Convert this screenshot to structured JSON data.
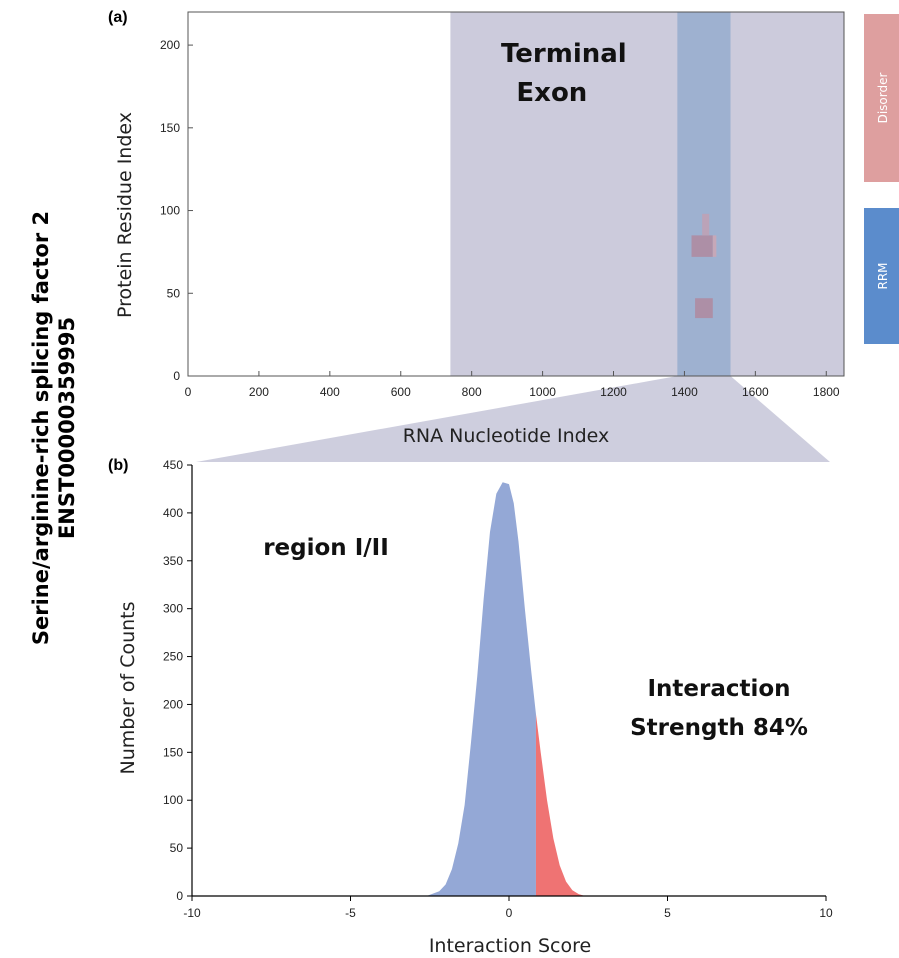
{
  "figure": {
    "protein_title": "Serine/arginine-rich splicing factor 2",
    "transcript_id": "ENST00000359995"
  },
  "chart_data": [
    {
      "panel": "(a)",
      "type": "heatmap",
      "xlabel": "RNA Nucleotide Index",
      "ylabel": "Protein Residue Index",
      "xlim": [
        0,
        1850
      ],
      "ylim": [
        0,
        220
      ],
      "xticks": [
        0,
        200,
        400,
        600,
        800,
        1000,
        1200,
        1400,
        1600,
        1800
      ],
      "yticks": [
        0,
        50,
        100,
        150,
        200
      ],
      "regions": [
        {
          "label_lines": [
            "Terminal",
            "Exon"
          ],
          "x_start": 740,
          "x_end": 1850,
          "color": "#cccbdc"
        },
        {
          "label_lines": [],
          "x_start": 1380,
          "x_end": 1530,
          "color": "#9eb1d0"
        }
      ],
      "cells": [
        {
          "x_start": 1430,
          "x_end": 1480,
          "y_start": 35,
          "y_end": 47,
          "color": "#ad8fa6"
        },
        {
          "x_start": 1420,
          "x_end": 1480,
          "y_start": 72,
          "y_end": 85,
          "color": "#ad8fa6"
        },
        {
          "x_start": 1480,
          "x_end": 1490,
          "y_start": 72,
          "y_end": 85,
          "color": "#c6a8b8"
        },
        {
          "x_start": 1450,
          "x_end": 1470,
          "y_start": 85,
          "y_end": 98,
          "color": "#bba3b8"
        }
      ],
      "domains": [
        {
          "name": "Disorder",
          "color": "#de9f9f"
        },
        {
          "name": "RRM",
          "color": "#5b8ccc"
        }
      ]
    },
    {
      "panel": "(b)",
      "type": "area",
      "xlabel": "Interaction Score",
      "ylabel": "Number of Counts",
      "xlim": [
        -10,
        10
      ],
      "ylim": [
        0,
        450
      ],
      "xticks": [
        -10,
        -5,
        0,
        5,
        10
      ],
      "yticks": [
        0,
        50,
        100,
        150,
        200,
        250,
        300,
        350,
        400,
        450
      ],
      "threshold": 0.85,
      "series": [
        {
          "color_below": "#94a8d6",
          "color_above": "#ef7373",
          "x": [
            -2.6,
            -2.2,
            -2.0,
            -1.8,
            -1.6,
            -1.4,
            -1.2,
            -1.0,
            -0.8,
            -0.6,
            -0.4,
            -0.2,
            0.0,
            0.15,
            0.3,
            0.5,
            0.7,
            0.85,
            1.0,
            1.2,
            1.4,
            1.6,
            1.8,
            2.0,
            2.2,
            2.4
          ],
          "y": [
            0,
            5,
            12,
            28,
            55,
            95,
            160,
            230,
            310,
            380,
            420,
            432,
            430,
            410,
            370,
            300,
            235,
            190,
            150,
            100,
            60,
            32,
            15,
            6,
            2,
            0
          ]
        }
      ],
      "annotations": {
        "region": "region I/II",
        "strength_lines": [
          "Interaction",
          "Strength 84%"
        ]
      }
    }
  ]
}
